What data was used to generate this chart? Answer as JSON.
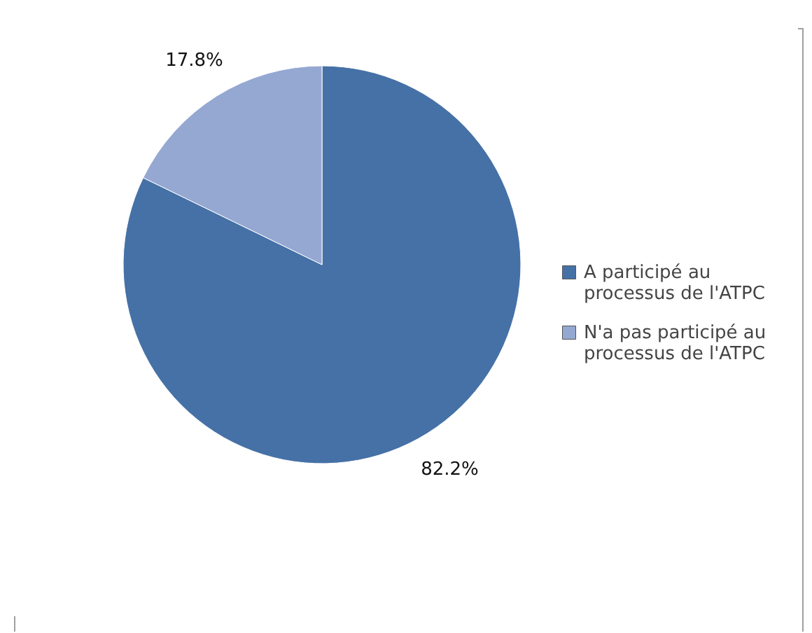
{
  "chart_data": {
    "type": "pie",
    "categories": [
      "A participé au processus de l'ATPC",
      "N'a pas participé au processus de l'ATPC"
    ],
    "values": [
      82.2,
      17.8
    ],
    "colors": [
      "#4571a6",
      "#95a8d2"
    ],
    "value_labels": [
      "82.2%",
      "17.8%"
    ],
    "legend": "right"
  }
}
